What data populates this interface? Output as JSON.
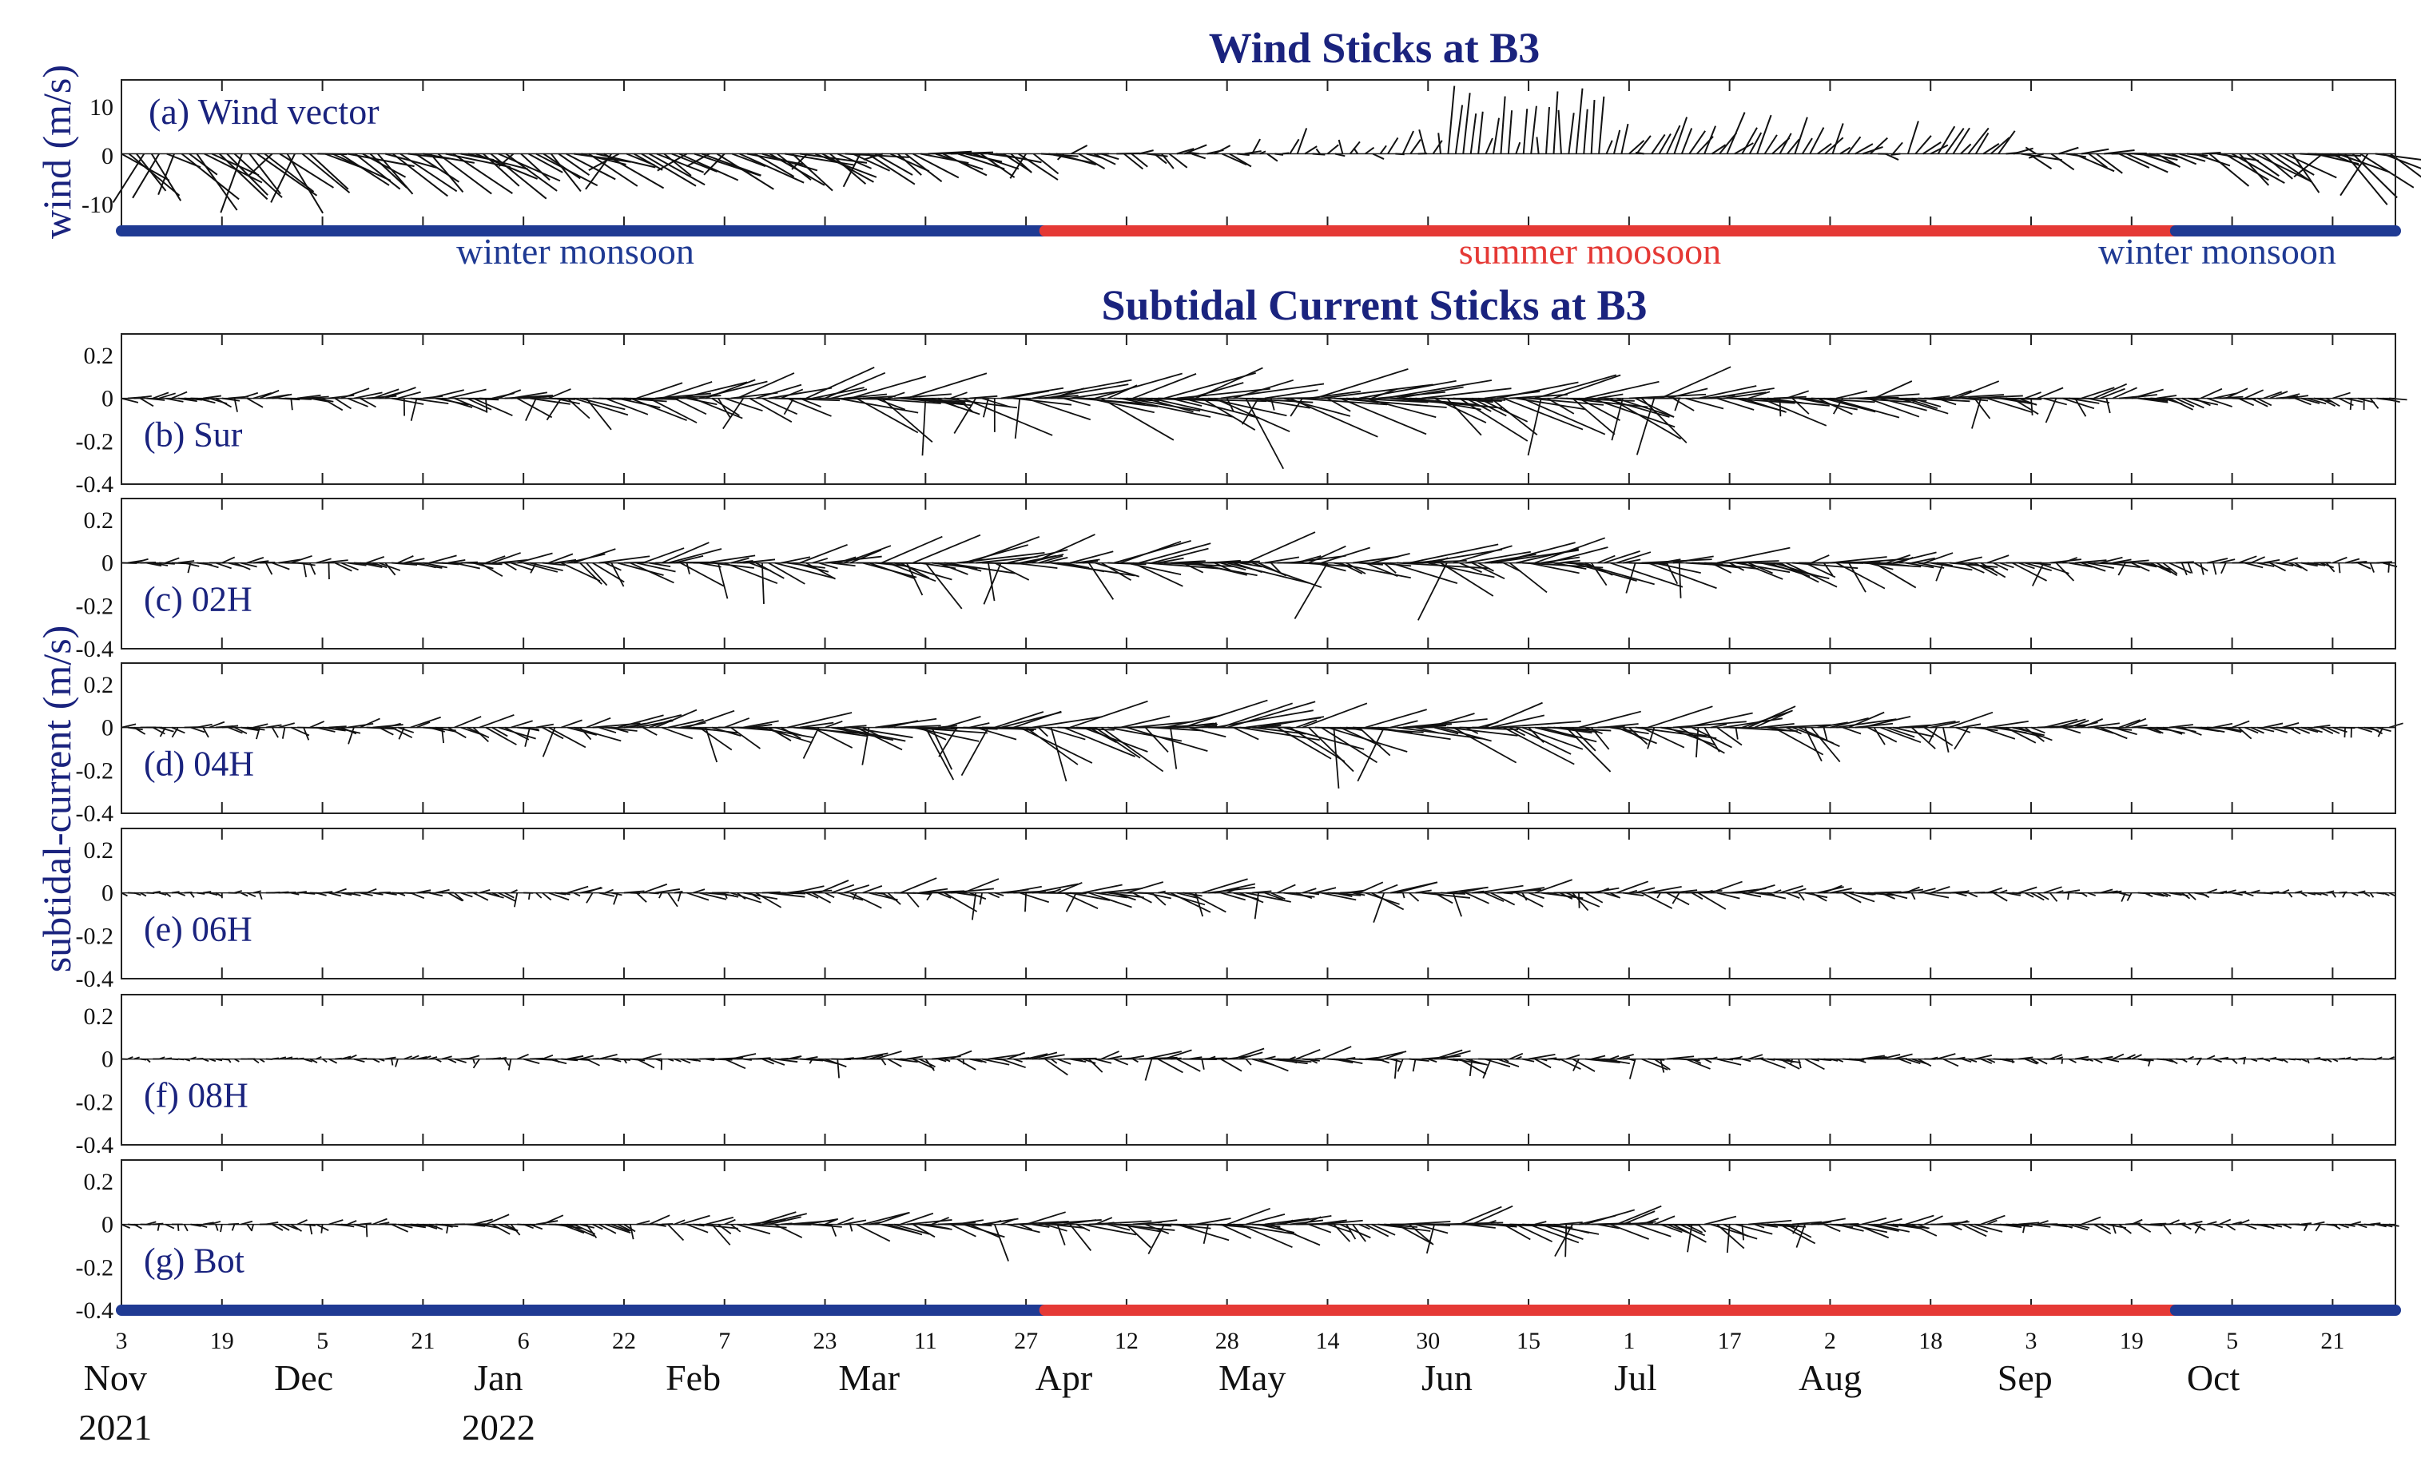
{
  "colors": {
    "title": "#1a237e",
    "winter": "#1f3a93",
    "summer": "#e53935",
    "stick": "#111111",
    "axis": "#222222"
  },
  "chart_data": {
    "type": "stick plot",
    "titles": {
      "wind": "Wind Sticks at B3",
      "current": "Subtidal Current Sticks at B3"
    },
    "ylabels": {
      "wind": "wind (m/s)",
      "current": "subtidal-current (m/s)"
    },
    "time_axis": {
      "start": "2021-11-03",
      "end": "2022-10-31",
      "day_ticks": [
        "3",
        "19",
        "5",
        "21",
        "6",
        "22",
        "7",
        "23",
        "11",
        "27",
        "12",
        "28",
        "14",
        "30",
        "15",
        "1",
        "17",
        "2",
        "18",
        "3",
        "19",
        "5",
        "21"
      ],
      "tick_dates": [
        "2021-11-03",
        "2021-11-19",
        "2021-12-05",
        "2021-12-21",
        "2022-01-06",
        "2022-01-22",
        "2022-02-07",
        "2022-02-23",
        "2022-03-11",
        "2022-03-27",
        "2022-04-12",
        "2022-04-28",
        "2022-05-14",
        "2022-05-30",
        "2022-06-15",
        "2022-07-01",
        "2022-07-17",
        "2022-08-02",
        "2022-08-18",
        "2022-09-03",
        "2022-09-19",
        "2022-10-05",
        "2022-10-21"
      ],
      "months": [
        {
          "label": "Nov",
          "date": "2021-11-01"
        },
        {
          "label": "Dec",
          "date": "2021-12-01"
        },
        {
          "label": "Jan",
          "date": "2022-01-01"
        },
        {
          "label": "Feb",
          "date": "2022-02-01"
        },
        {
          "label": "Mar",
          "date": "2022-03-01"
        },
        {
          "label": "Apr",
          "date": "2022-04-01"
        },
        {
          "label": "May",
          "date": "2022-05-01"
        },
        {
          "label": "Jun",
          "date": "2022-06-01"
        },
        {
          "label": "Jul",
          "date": "2022-07-01"
        },
        {
          "label": "Aug",
          "date": "2022-08-01"
        },
        {
          "label": "Sep",
          "date": "2022-09-01"
        },
        {
          "label": "Oct",
          "date": "2022-10-01"
        }
      ],
      "years": [
        {
          "label": "2021",
          "date": "2021-11-01"
        },
        {
          "label": "2022",
          "date": "2022-01-01"
        }
      ]
    },
    "seasons": [
      {
        "label": "winter monsoon",
        "start": "2021-11-03",
        "end": "2022-03-30",
        "kind": "winter"
      },
      {
        "label": "summer moosoon",
        "start": "2022-03-30",
        "end": "2022-09-26",
        "kind": "summer"
      },
      {
        "label": "winter monsoon",
        "start": "2022-09-26",
        "end": "2022-10-31",
        "kind": "winter"
      }
    ],
    "wind_panel": {
      "label": "(a) Wind vector",
      "ylim": [
        -15,
        15
      ],
      "yticks": [
        "10",
        "0",
        "-10"
      ],
      "ytick_values": [
        10,
        0,
        -10
      ],
      "typical_vector_by_month": [
        {
          "month": "2021-11",
          "u": 9,
          "v": -8
        },
        {
          "month": "2021-12",
          "u": 10,
          "v": -5
        },
        {
          "month": "2022-01",
          "u": 9,
          "v": -4
        },
        {
          "month": "2022-02",
          "u": 10,
          "v": -5
        },
        {
          "month": "2022-03",
          "u": 7,
          "v": -3
        },
        {
          "month": "2022-04",
          "u": 4,
          "v": -1
        },
        {
          "month": "2022-05",
          "u": 2,
          "v": 2
        },
        {
          "month": "2022-06",
          "u": 1,
          "v": 8
        },
        {
          "month": "2022-07",
          "u": 3,
          "v": 4
        },
        {
          "month": "2022-08",
          "u": 3,
          "v": 3
        },
        {
          "month": "2022-09",
          "u": 6,
          "v": -1
        },
        {
          "month": "2022-10",
          "u": 9,
          "v": -5
        }
      ]
    },
    "current_panels": [
      {
        "label": "(b) Sur",
        "ylim": [
          -0.4,
          0.3
        ],
        "yticks": [
          "0.2",
          "0",
          "-0.2",
          "-0.4"
        ],
        "ytick_values": [
          0.2,
          0,
          -0.2,
          -0.4
        ],
        "max_speed": 0.35
      },
      {
        "label": "(c) 02H",
        "ylim": [
          -0.4,
          0.3
        ],
        "yticks": [
          "0.2",
          "0",
          "-0.2",
          "-0.4"
        ],
        "ytick_values": [
          0.2,
          0,
          -0.2,
          -0.4
        ],
        "max_speed": 0.3
      },
      {
        "label": "(d) 04H",
        "ylim": [
          -0.4,
          0.3
        ],
        "yticks": [
          "0.2",
          "0",
          "-0.2",
          "-0.4"
        ],
        "ytick_values": [
          0.2,
          0,
          -0.2,
          -0.4
        ],
        "max_speed": 0.3
      },
      {
        "label": "(e) 06H",
        "ylim": [
          -0.4,
          0.3
        ],
        "yticks": [
          "0.2",
          "0",
          "-0.2",
          "-0.4"
        ],
        "ytick_values": [
          0.2,
          0,
          -0.2,
          -0.4
        ],
        "max_speed": 0.15
      },
      {
        "label": "(f) 08H",
        "ylim": [
          -0.4,
          0.3
        ],
        "yticks": [
          "0.2",
          "0",
          "-0.2",
          "-0.4"
        ],
        "ytick_values": [
          0.2,
          0,
          -0.2,
          -0.4
        ],
        "max_speed": 0.12
      },
      {
        "label": "(g) Bot",
        "ylim": [
          -0.4,
          0.3
        ],
        "yticks": [
          "0.2",
          "0",
          "-0.2",
          "-0.4"
        ],
        "ytick_values": [
          0.2,
          0,
          -0.2,
          -0.4
        ],
        "max_speed": 0.2
      }
    ]
  }
}
